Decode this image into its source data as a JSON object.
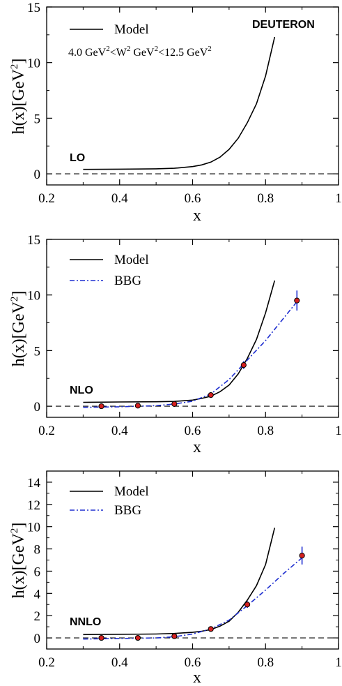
{
  "figure": {
    "target_label": "DEUTERON",
    "kinematics": {
      "t1": "4.0 GeV",
      "s1": "2",
      "t2": "<W",
      "s2": "2",
      "t3": " GeV",
      "s3": "2",
      "t4": "<12.5 GeV",
      "s4": "2"
    },
    "ylabel": {
      "a": "h(x)[GeV",
      "sup": "2",
      "b": "]"
    },
    "xlabel": "x"
  },
  "chart_data": [
    {
      "type": "line",
      "panel_label": "LO",
      "xlabel": "x",
      "ylabel": "h(x)[GeV^2]",
      "xlim": [
        0.2,
        1.0
      ],
      "ylim": [
        -1,
        15
      ],
      "xticks": [
        0.2,
        0.4,
        0.6,
        0.8,
        1.0
      ],
      "xtick_labels": [
        "0.2",
        "0.4",
        "0.6",
        "0.8",
        "1"
      ],
      "yticks": [
        0,
        5,
        10,
        15
      ],
      "ytick_labels": [
        "0",
        "5",
        "10",
        "15"
      ],
      "reference_line": {
        "y": 0,
        "style": "dashed"
      },
      "legend": [
        "Model"
      ],
      "series": [
        {
          "name": "Model",
          "style": "solid",
          "color": "#000000",
          "x": [
            0.3,
            0.4,
            0.5,
            0.55,
            0.6,
            0.625,
            0.65,
            0.675,
            0.7,
            0.725,
            0.75,
            0.775,
            0.8,
            0.825
          ],
          "y": [
            0.4,
            0.42,
            0.45,
            0.5,
            0.65,
            0.8,
            1.05,
            1.5,
            2.2,
            3.2,
            4.6,
            6.3,
            8.8,
            12.3
          ]
        }
      ]
    },
    {
      "type": "line",
      "panel_label": "NLO",
      "xlabel": "x",
      "ylabel": "h(x)[GeV^2]",
      "xlim": [
        0.2,
        1.0
      ],
      "ylim": [
        -1,
        15
      ],
      "xticks": [
        0.2,
        0.4,
        0.6,
        0.8,
        1.0
      ],
      "xtick_labels": [
        "0.2",
        "0.4",
        "0.6",
        "0.8",
        "1"
      ],
      "yticks": [
        0,
        5,
        10,
        15
      ],
      "ytick_labels": [
        "0",
        "5",
        "10",
        "15"
      ],
      "reference_line": {
        "y": 0,
        "style": "dashed"
      },
      "legend": [
        "Model",
        "BBG"
      ],
      "series": [
        {
          "name": "Model",
          "style": "solid",
          "color": "#000000",
          "x": [
            0.3,
            0.4,
            0.5,
            0.55,
            0.6,
            0.625,
            0.65,
            0.675,
            0.7,
            0.725,
            0.75,
            0.775,
            0.8,
            0.825
          ],
          "y": [
            0.35,
            0.38,
            0.4,
            0.43,
            0.55,
            0.7,
            0.9,
            1.3,
            1.9,
            2.9,
            4.3,
            6.0,
            8.4,
            11.3
          ]
        },
        {
          "name": "BBG",
          "style": "dashdot",
          "color": "#1f2fd0",
          "x": [
            0.3,
            0.4,
            0.5,
            0.55,
            0.6,
            0.65,
            0.7,
            0.74,
            0.8,
            0.886
          ],
          "y": [
            -0.1,
            -0.05,
            0.05,
            0.2,
            0.45,
            1.1,
            2.4,
            3.8,
            5.9,
            9.4
          ]
        },
        {
          "name": "data",
          "style": "points",
          "color": "#d42020",
          "x": [
            0.35,
            0.45,
            0.55,
            0.65,
            0.74,
            0.886
          ],
          "y": [
            0.0,
            0.05,
            0.2,
            1.0,
            3.7,
            9.5
          ],
          "err": [
            0.05,
            0.05,
            0.1,
            0.15,
            0.35,
            0.9
          ]
        }
      ]
    },
    {
      "type": "line",
      "panel_label": "NNLO",
      "xlabel": "x",
      "ylabel": "h(x)[GeV^2]",
      "xlim": [
        0.2,
        1.0
      ],
      "ylim": [
        -1,
        15
      ],
      "xticks": [
        0.2,
        0.4,
        0.6,
        0.8,
        1.0
      ],
      "xtick_labels": [
        "0.2",
        "0.4",
        "0.6",
        "0.8",
        "1"
      ],
      "yticks": [
        0,
        2,
        4,
        6,
        8,
        10,
        12,
        14
      ],
      "ytick_labels": [
        "0",
        "2",
        "4",
        "6",
        "8",
        "10",
        "12",
        "14"
      ],
      "reference_line": {
        "y": 0,
        "style": "dashed"
      },
      "legend": [
        "Model",
        "BBG"
      ],
      "series": [
        {
          "name": "Model",
          "style": "solid",
          "color": "#000000",
          "x": [
            0.3,
            0.4,
            0.5,
            0.55,
            0.6,
            0.625,
            0.65,
            0.675,
            0.7,
            0.725,
            0.75,
            0.775,
            0.8,
            0.825
          ],
          "y": [
            0.3,
            0.32,
            0.35,
            0.4,
            0.5,
            0.6,
            0.75,
            1.05,
            1.5,
            2.3,
            3.4,
            4.7,
            6.6,
            9.9
          ]
        },
        {
          "name": "BBG",
          "style": "dashdot",
          "color": "#1f2fd0",
          "x": [
            0.3,
            0.4,
            0.5,
            0.55,
            0.6,
            0.65,
            0.7,
            0.75,
            0.8,
            0.85,
            0.9
          ],
          "y": [
            -0.1,
            -0.05,
            0.0,
            0.1,
            0.35,
            0.8,
            1.6,
            2.9,
            4.3,
            5.8,
            7.2
          ]
        },
        {
          "name": "data",
          "style": "points",
          "color": "#d42020",
          "x": [
            0.35,
            0.45,
            0.55,
            0.65,
            0.75,
            0.9
          ],
          "y": [
            0.0,
            0.0,
            0.15,
            0.8,
            3.0,
            7.4
          ],
          "err": [
            0.05,
            0.05,
            0.1,
            0.15,
            0.3,
            0.8
          ]
        }
      ]
    }
  ]
}
